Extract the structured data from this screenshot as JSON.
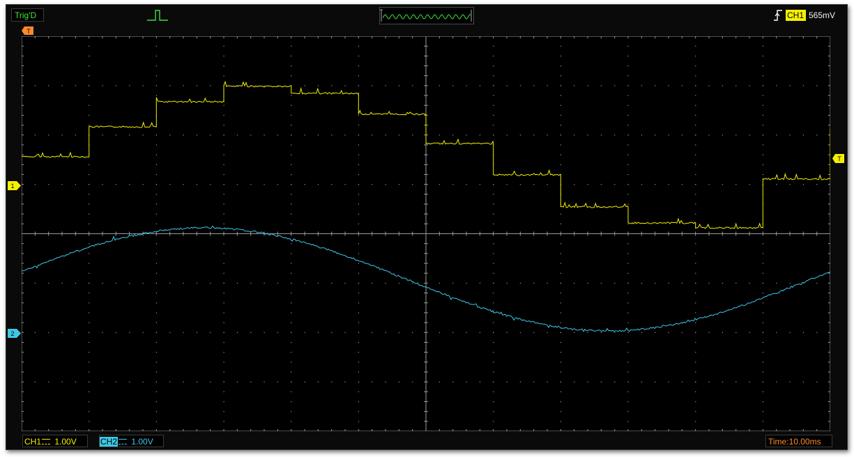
{
  "status": {
    "trigger_state": "Trig'D"
  },
  "trigger": {
    "channel": "CH1",
    "level": "565mV",
    "position_marker": "T",
    "level_marker": "T"
  },
  "channels": [
    {
      "name": "CH1",
      "marker": "1",
      "scale": "1.00V",
      "color": "#f4f000"
    },
    {
      "name": "CH2",
      "marker": "2",
      "scale": "1.00V",
      "color": "#3ec8e6"
    }
  ],
  "timebase": {
    "label": "Time:",
    "value": "10.00ms",
    "color": "#ff8a2a"
  },
  "icons": {
    "trigger_mode": "pulse-icon",
    "trigger_edge": "rising-edge-icon",
    "overview": "waveform-overview-icon"
  },
  "colors": {
    "screen_bg": "#000000",
    "grid": "#9a9a9a",
    "trigger_marker": "#ff8a2a"
  }
}
